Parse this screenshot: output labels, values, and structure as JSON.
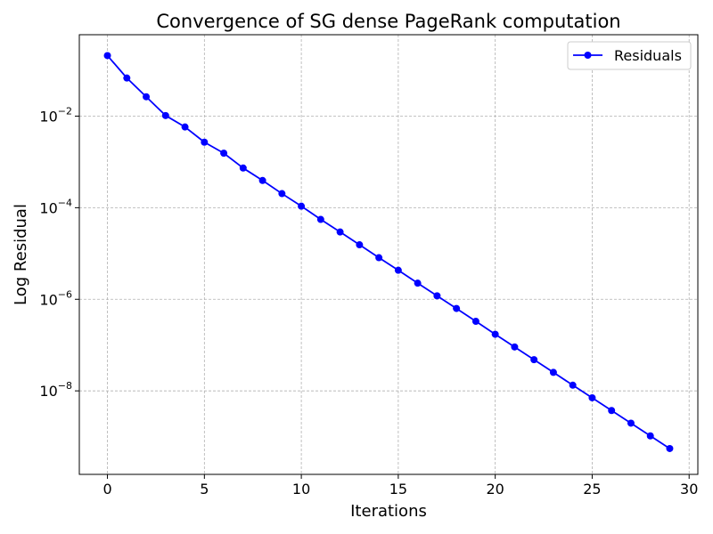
{
  "chart_data": {
    "type": "line",
    "title": "Convergence of SG dense PageRank computation",
    "xlabel": "Iterations",
    "ylabel": "Log Residual",
    "yscale": "log",
    "xlim": [
      -1.45,
      30.45
    ],
    "ylim": [
      1.5e-10,
      0.6
    ],
    "xticks": [
      0,
      5,
      10,
      15,
      20,
      25,
      30
    ],
    "xtick_labels": [
      "0",
      "5",
      "10",
      "15",
      "20",
      "25",
      "30"
    ],
    "yticks": [
      0.01,
      0.0001,
      1e-06,
      1e-08
    ],
    "ytick_labels": [
      {
        "base": "10",
        "exp": "−2"
      },
      {
        "base": "10",
        "exp": "−4"
      },
      {
        "base": "10",
        "exp": "−6"
      },
      {
        "base": "10",
        "exp": "−8"
      }
    ],
    "grid": true,
    "legend_position": "top-right",
    "series": [
      {
        "name": "Residuals",
        "color": "#0000ff",
        "marker": "circle",
        "x": [
          0,
          1,
          2,
          3,
          4,
          5,
          6,
          7,
          8,
          9,
          10,
          11,
          12,
          13,
          14,
          15,
          16,
          17,
          18,
          19,
          20,
          21,
          22,
          23,
          24,
          25,
          26,
          27,
          28,
          29
        ],
        "values": [
          0.21,
          0.068,
          0.0265,
          0.0103,
          0.0058,
          0.0027,
          0.00155,
          0.000735,
          0.000393,
          0.000203,
          0.000108,
          5.55e-05,
          2.95e-05,
          1.55e-05,
          8.1e-06,
          4.3e-06,
          2.25e-06,
          1.19e-06,
          6.3e-07,
          3.3e-07,
          1.72e-07,
          9.1e-08,
          4.8e-08,
          2.53e-08,
          1.33e-08,
          7.05e-09,
          3.72e-09,
          1.97e-09,
          1.04e-09,
          5.5e-10
        ]
      }
    ]
  }
}
